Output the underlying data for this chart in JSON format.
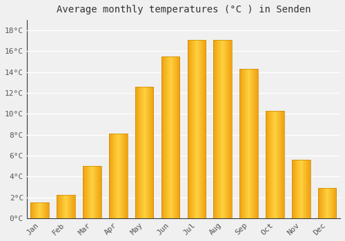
{
  "title": "Average monthly temperatures (°C ) in Senden",
  "months": [
    "Jan",
    "Feb",
    "Mar",
    "Apr",
    "May",
    "Jun",
    "Jul",
    "Aug",
    "Sep",
    "Oct",
    "Nov",
    "Dec"
  ],
  "values": [
    1.5,
    2.2,
    5.0,
    8.1,
    12.6,
    15.5,
    17.1,
    17.1,
    14.3,
    10.3,
    5.6,
    2.9
  ],
  "bar_color_left": "#F0A010",
  "bar_color_center": "#FFD040",
  "bar_color_right": "#F0A010",
  "ylim": [
    0,
    19
  ],
  "yticks": [
    0,
    2,
    4,
    6,
    8,
    10,
    12,
    14,
    16,
    18
  ],
  "ytick_labels": [
    "0°C",
    "2°C",
    "4°C",
    "6°C",
    "8°C",
    "10°C",
    "12°C",
    "14°C",
    "16°C",
    "18°C"
  ],
  "background_color": "#f0f0f0",
  "grid_color": "#ffffff",
  "title_fontsize": 10,
  "tick_fontsize": 8,
  "bar_width": 0.7,
  "figsize": [
    5.0,
    3.5
  ],
  "dpi": 100
}
